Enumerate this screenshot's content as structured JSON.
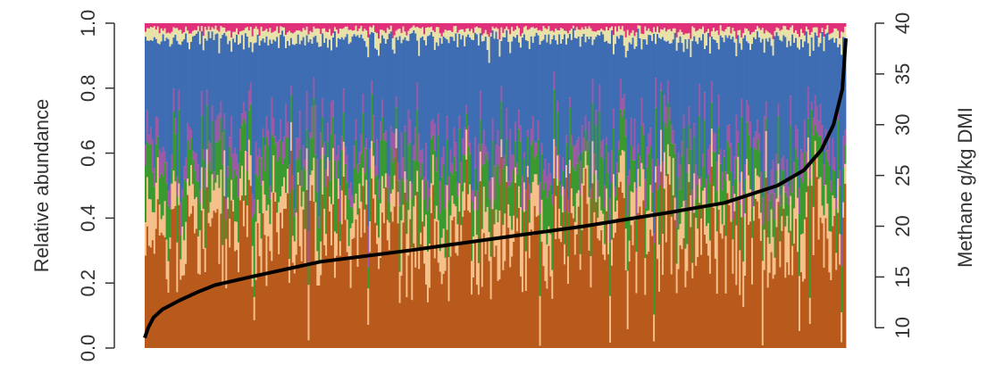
{
  "chart_data": {
    "type": "bar",
    "stacked": true,
    "title": "",
    "xlabel": "",
    "ylabel": "Relative abundance",
    "y2label": "Methane g/kg DMI",
    "ylim": [
      0,
      1
    ],
    "y2lim": [
      8,
      40
    ],
    "yticks": [
      "0.0",
      "0.2",
      "0.4",
      "0.6",
      "0.8",
      "1.0"
    ],
    "y2ticks": [
      "10",
      "15",
      "20",
      "25",
      "30",
      "35",
      "40"
    ],
    "legend": "none",
    "n_samples": 400,
    "series": [
      {
        "name": "",
        "color": "#b85a1c",
        "mean_value": 0.36
      },
      {
        "name": "",
        "color": "#f5c08a",
        "mean_value": 0.1
      },
      {
        "name": "",
        "color": "#3a9a30",
        "mean_value": 0.12
      },
      {
        "name": "",
        "color": "#9b5aa6",
        "mean_value": 0.06
      },
      {
        "name": "",
        "color": "#3f6db3",
        "mean_value": 0.31
      },
      {
        "name": "",
        "color": "#e8e2a8",
        "mean_value": 0.03
      },
      {
        "name": "",
        "color": "#e0307a",
        "mean_value": 0.02
      }
    ],
    "methane_line": {
      "color": "#000000",
      "x": [
        0,
        2,
        5,
        10,
        20,
        30,
        40,
        60,
        100,
        150,
        200,
        250,
        300,
        330,
        360,
        375,
        385,
        392,
        397,
        399
      ],
      "y": [
        9.0,
        10.0,
        11.0,
        11.8,
        12.7,
        13.5,
        14.2,
        15.0,
        16.5,
        17.6,
        18.8,
        20.0,
        21.4,
        22.3,
        24.0,
        25.5,
        27.5,
        30.0,
        33.5,
        38.5
      ]
    }
  }
}
